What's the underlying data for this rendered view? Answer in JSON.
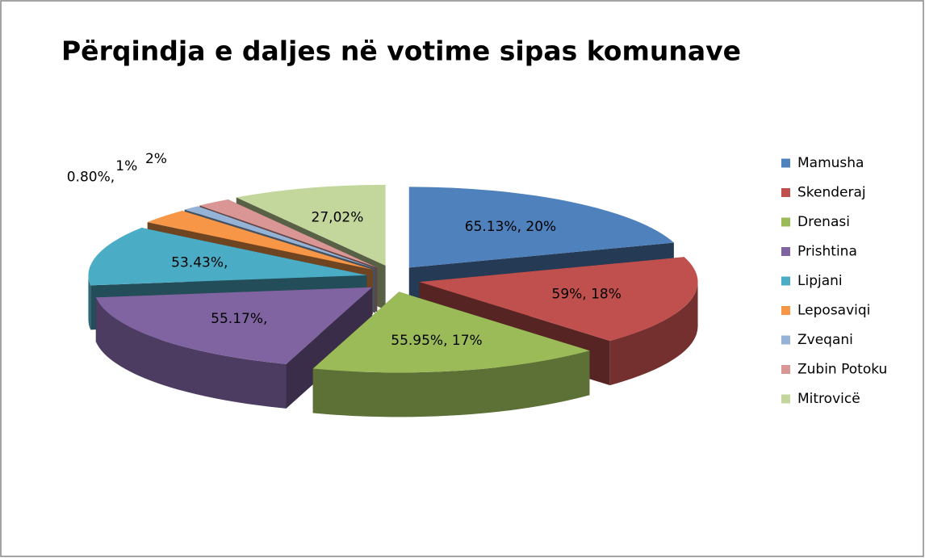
{
  "chart_data": {
    "type": "pie3d",
    "title": "Përqindja e daljes në votime sipas komunave",
    "categories": [
      "Mamusha",
      "Skenderaj",
      "Drenasi",
      "Prishtina",
      "Lipjani",
      "Leposaviqi",
      "Zveqani",
      "Zubin Potoku",
      "Mitrovicë"
    ],
    "values": [
      20,
      18,
      17,
      18,
      12,
      3,
      1,
      2,
      9
    ],
    "value_labels": [
      "65.13%, 20%",
      "59%, 18%",
      "55.95%, 17%",
      "55.17%,",
      "53.43%,",
      "0.80%,",
      "1%",
      "2%",
      "27,02%"
    ],
    "colors": [
      "#4f81bd",
      "#c0504d",
      "#9bbb59",
      "#8064a2",
      "#4bacc6",
      "#f79646",
      "#95b3d7",
      "#d99694",
      "#c3d69b"
    ],
    "legend": "right"
  }
}
